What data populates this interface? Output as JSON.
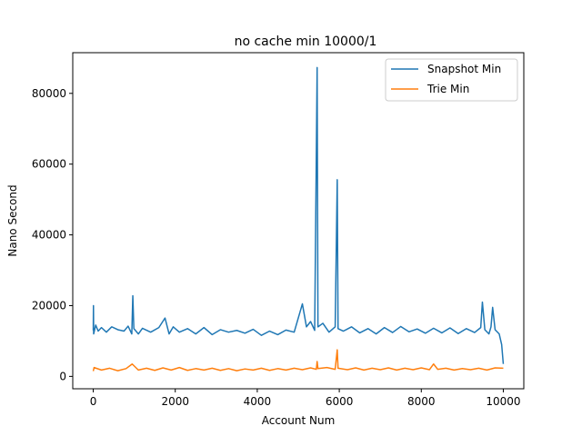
{
  "chart_data": {
    "type": "line",
    "title": "no cache min 10000/1",
    "xlabel": "Account Num",
    "ylabel": "Nano Second",
    "xlim": [
      -500,
      10500
    ],
    "ylim": [
      -3500,
      91500
    ],
    "xticks": [
      0,
      2000,
      4000,
      6000,
      8000,
      10000
    ],
    "yticks": [
      0,
      20000,
      40000,
      60000,
      80000
    ],
    "grid": false,
    "legend_position": "top-right",
    "series": [
      {
        "name": "Snapshot Min",
        "color": "#1f77b4",
        "points": [
          [
            0,
            13000
          ],
          [
            5,
            20000
          ],
          [
            10,
            12000
          ],
          [
            60,
            14500
          ],
          [
            120,
            12800
          ],
          [
            200,
            13800
          ],
          [
            320,
            12500
          ],
          [
            450,
            14000
          ],
          [
            600,
            13200
          ],
          [
            750,
            12800
          ],
          [
            850,
            14200
          ],
          [
            940,
            12000
          ],
          [
            965,
            22800
          ],
          [
            990,
            13500
          ],
          [
            1100,
            12000
          ],
          [
            1200,
            13600
          ],
          [
            1400,
            12500
          ],
          [
            1600,
            13800
          ],
          [
            1750,
            16500
          ],
          [
            1850,
            12000
          ],
          [
            1950,
            14000
          ],
          [
            2100,
            12500
          ],
          [
            2300,
            13500
          ],
          [
            2500,
            12000
          ],
          [
            2700,
            13800
          ],
          [
            2900,
            11800
          ],
          [
            3100,
            13200
          ],
          [
            3300,
            12500
          ],
          [
            3500,
            13000
          ],
          [
            3700,
            12200
          ],
          [
            3900,
            13300
          ],
          [
            4100,
            11600
          ],
          [
            4300,
            12800
          ],
          [
            4500,
            11800
          ],
          [
            4700,
            13100
          ],
          [
            4900,
            12500
          ],
          [
            5100,
            20500
          ],
          [
            5200,
            14000
          ],
          [
            5300,
            15500
          ],
          [
            5400,
            13000
          ],
          [
            5460,
            87300
          ],
          [
            5480,
            14000
          ],
          [
            5600,
            15000
          ],
          [
            5750,
            12500
          ],
          [
            5900,
            14000
          ],
          [
            5950,
            55600
          ],
          [
            5970,
            13500
          ],
          [
            6100,
            12800
          ],
          [
            6300,
            14000
          ],
          [
            6500,
            12300
          ],
          [
            6700,
            13500
          ],
          [
            6900,
            12000
          ],
          [
            7100,
            13800
          ],
          [
            7300,
            12400
          ],
          [
            7500,
            14100
          ],
          [
            7700,
            12600
          ],
          [
            7900,
            13400
          ],
          [
            8100,
            12200
          ],
          [
            8300,
            13600
          ],
          [
            8500,
            12300
          ],
          [
            8700,
            13700
          ],
          [
            8900,
            12100
          ],
          [
            9100,
            13500
          ],
          [
            9300,
            12400
          ],
          [
            9450,
            13800
          ],
          [
            9490,
            21000
          ],
          [
            9550,
            13200
          ],
          [
            9650,
            12000
          ],
          [
            9700,
            14000
          ],
          [
            9740,
            19500
          ],
          [
            9800,
            13200
          ],
          [
            9900,
            12000
          ],
          [
            9960,
            9000
          ],
          [
            10000,
            3500
          ]
        ]
      },
      {
        "name": "Trie Min",
        "color": "#ff7f0e",
        "points": [
          [
            0,
            1500
          ],
          [
            20,
            2500
          ],
          [
            200,
            1800
          ],
          [
            400,
            2300
          ],
          [
            600,
            1600
          ],
          [
            800,
            2200
          ],
          [
            950,
            3500
          ],
          [
            1100,
            1800
          ],
          [
            1300,
            2300
          ],
          [
            1500,
            1700
          ],
          [
            1700,
            2400
          ],
          [
            1900,
            1800
          ],
          [
            2100,
            2500
          ],
          [
            2300,
            1700
          ],
          [
            2500,
            2200
          ],
          [
            2700,
            1800
          ],
          [
            2900,
            2300
          ],
          [
            3100,
            1700
          ],
          [
            3300,
            2200
          ],
          [
            3500,
            1600
          ],
          [
            3700,
            2100
          ],
          [
            3900,
            1800
          ],
          [
            4100,
            2300
          ],
          [
            4300,
            1700
          ],
          [
            4500,
            2200
          ],
          [
            4700,
            1800
          ],
          [
            4900,
            2300
          ],
          [
            5100,
            1900
          ],
          [
            5300,
            2400
          ],
          [
            5440,
            2000
          ],
          [
            5460,
            4200
          ],
          [
            5480,
            2200
          ],
          [
            5700,
            2500
          ],
          [
            5900,
            2000
          ],
          [
            5950,
            7500
          ],
          [
            5970,
            2300
          ],
          [
            6200,
            1900
          ],
          [
            6400,
            2400
          ],
          [
            6600,
            1800
          ],
          [
            6800,
            2300
          ],
          [
            7000,
            1900
          ],
          [
            7200,
            2400
          ],
          [
            7400,
            1800
          ],
          [
            7600,
            2300
          ],
          [
            7800,
            1900
          ],
          [
            8000,
            2400
          ],
          [
            8200,
            1900
          ],
          [
            8300,
            3500
          ],
          [
            8400,
            2000
          ],
          [
            8600,
            2300
          ],
          [
            8800,
            1800
          ],
          [
            9000,
            2200
          ],
          [
            9200,
            1900
          ],
          [
            9400,
            2300
          ],
          [
            9600,
            1800
          ],
          [
            9800,
            2400
          ],
          [
            10000,
            2300
          ]
        ]
      }
    ]
  }
}
